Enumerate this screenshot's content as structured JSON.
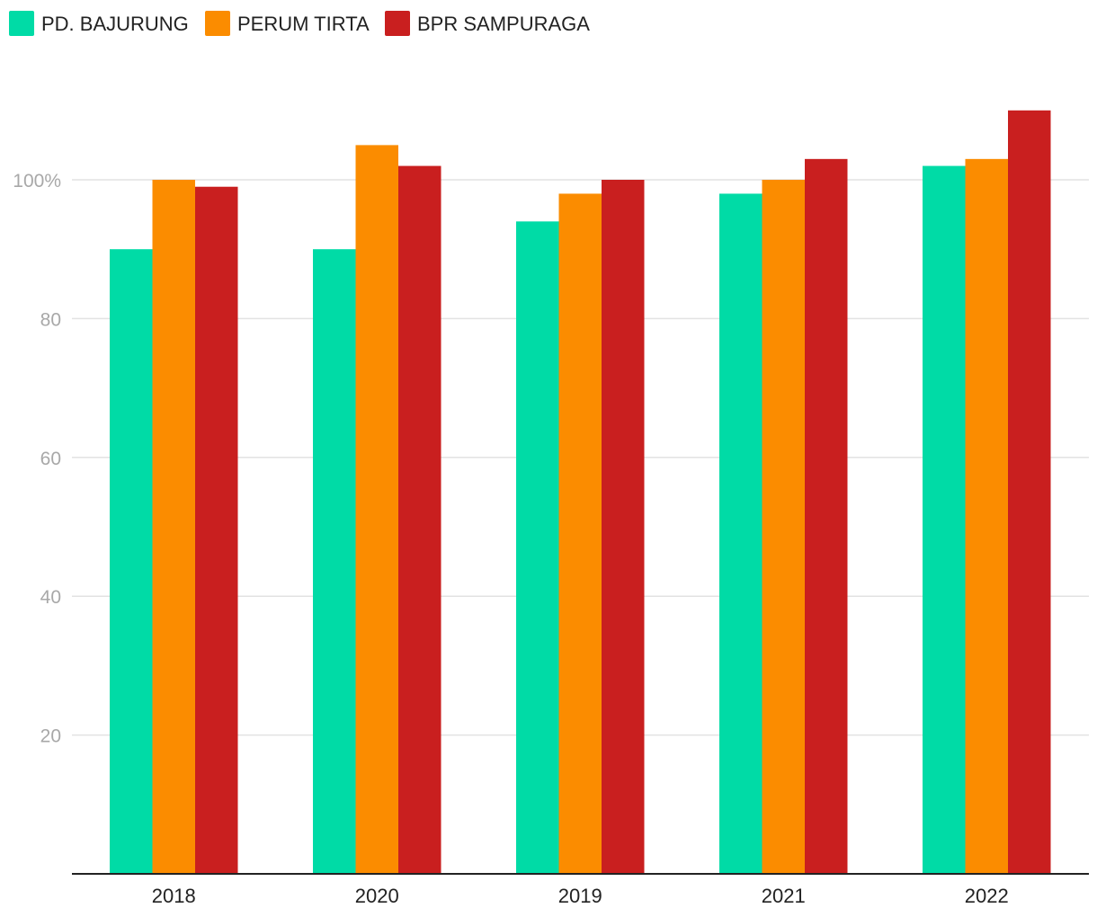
{
  "chart_data": {
    "type": "bar",
    "title": "",
    "xlabel": "",
    "ylabel": "",
    "categories": [
      "2018",
      "2020",
      "2019",
      "2021",
      "2022"
    ],
    "series": [
      {
        "name": "PD. BAJURUNG",
        "color": "#00dba6",
        "values": [
          90,
          90,
          94,
          98,
          102
        ]
      },
      {
        "name": "PERUM TIRTA",
        "color": "#fb8c00",
        "values": [
          100,
          105,
          98,
          100,
          103
        ]
      },
      {
        "name": "BPR SAMPURAGA",
        "color": "#c91f1f",
        "values": [
          99,
          102,
          100,
          103,
          110
        ]
      }
    ],
    "ylim": [
      0,
      110
    ],
    "yticks": [
      {
        "value": 20,
        "label": "20"
      },
      {
        "value": 40,
        "label": "40"
      },
      {
        "value": 60,
        "label": "60"
      },
      {
        "value": 80,
        "label": "80"
      },
      {
        "value": 100,
        "label": "100%"
      }
    ],
    "grid": true,
    "legend_position": "top-left"
  }
}
